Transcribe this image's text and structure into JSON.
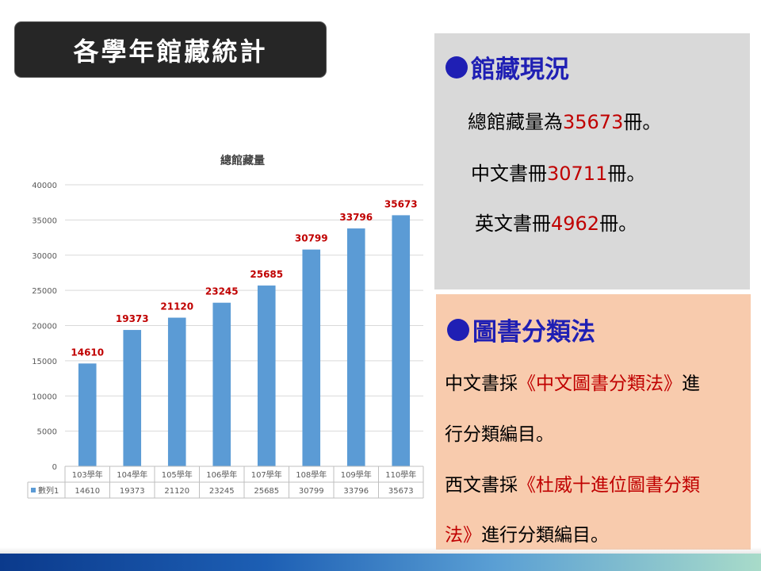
{
  "slide": {
    "title": "各學年館藏統計"
  },
  "holdings": {
    "heading": "館藏現況",
    "total": {
      "prefix": "總館藏量為",
      "value": "35673",
      "suffix": "冊。"
    },
    "chinese": {
      "prefix": "中文書冊",
      "value": "30711",
      "suffix": "冊。"
    },
    "english": {
      "prefix": "英文書冊",
      "value": "4962",
      "suffix": "冊。"
    }
  },
  "classification": {
    "heading": "圖書分類法",
    "line1_pre": "中文書採",
    "line1_red": "《中文圖書分類法》",
    "line1_post": "進",
    "line2": "行分類編目。",
    "line3_pre": "西文書採",
    "line3_red": "《杜威十進位圖書分類",
    "line4_red": "法》",
    "line4_post": "進行分類編目。"
  },
  "chart_data": {
    "type": "bar",
    "title": "總館藏量",
    "categories": [
      "103學年",
      "104學年",
      "105學年",
      "106學年",
      "107學年",
      "108學年",
      "109學年",
      "110學年"
    ],
    "series": [
      {
        "name": "數列1",
        "values": [
          14610,
          19373,
          21120,
          23245,
          25685,
          30799,
          33796,
          35673
        ]
      }
    ],
    "ylim": [
      0,
      40000
    ],
    "yticks": [
      0,
      5000,
      10000,
      15000,
      20000,
      25000,
      30000,
      35000,
      40000
    ],
    "grid": true,
    "data_table": true,
    "bar_color": "#5b9bd5",
    "label_color": "#c00000"
  }
}
